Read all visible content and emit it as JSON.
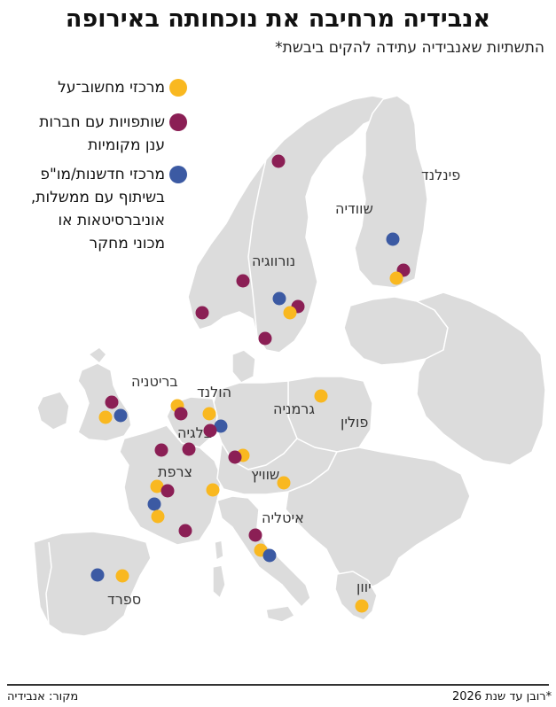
{
  "title": "אנבידיה מרחיבה את נוכחותה באירופה",
  "subtitle": "התשתיות שאנבידיה עתידה להקים ביבשת*",
  "colors": {
    "land": "#dcdcdc",
    "border": "#ffffff",
    "compute": "#f9b820",
    "partnership": "#8b1f55",
    "innovation": "#3c5aa3"
  },
  "legend": [
    {
      "key": "compute",
      "lines": [
        "מרכזי מחשוב־על"
      ]
    },
    {
      "key": "partnership",
      "lines": [
        "שותפויות עם חברות",
        "ענן מקומיות"
      ]
    },
    {
      "key": "innovation",
      "lines": [
        "מרכזי חדשנות/מו\"פ",
        "בשיתוף עם ממשלות,",
        "אוניברסיטאות או",
        "מכוני מחקר"
      ]
    }
  ],
  "countries": {
    "finland": "פינלנד",
    "sweden": "שוודיה",
    "norway": "נורווגיה",
    "britain": "בריטניה",
    "netherlands": "הולנד",
    "germany": "גרמניה",
    "belgium": "בלגיה",
    "poland": "פולין",
    "france": "צרפת",
    "switzerland": "שוויץ",
    "italy": "איטליה",
    "spain": "ספרד",
    "greece": "יוון"
  },
  "footer": {
    "note": "*רובן עד שנת 2026",
    "source": "מקור: אנבידיה"
  }
}
